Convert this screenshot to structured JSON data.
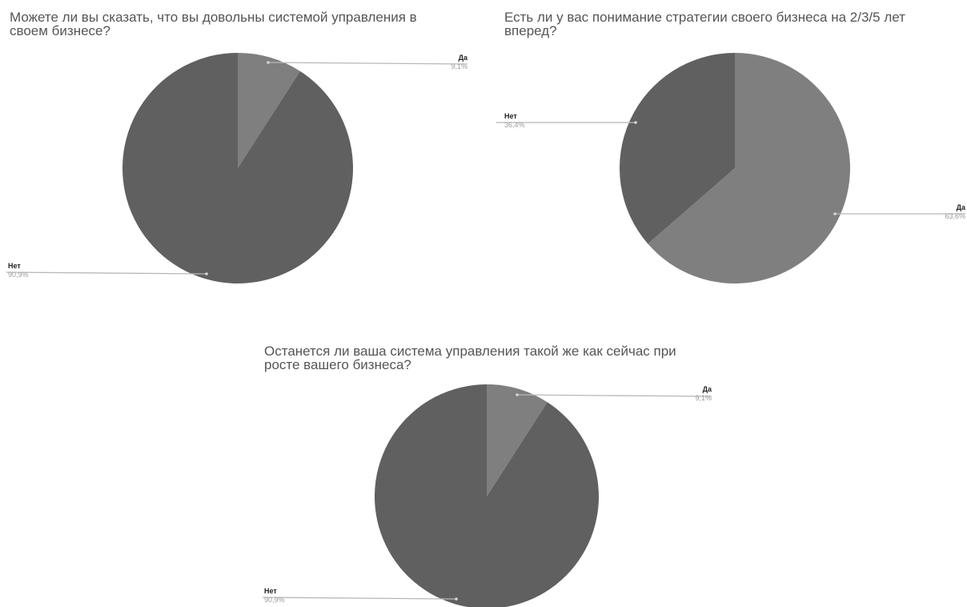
{
  "colors": {
    "yes": "#7f7f7f",
    "no": "#606060",
    "leader": "#b8b8b8",
    "background": "#ffffff"
  },
  "chart_data": [
    {
      "type": "pie",
      "title": "Можете ли вы сказать, что вы довольны системой управления в своем бизнесе?",
      "slices": [
        {
          "label": "Да",
          "value": 9.1,
          "display": "9,1%",
          "color": "#7f7f7f"
        },
        {
          "label": "Нет",
          "value": 90.9,
          "display": "90,9%",
          "color": "#606060"
        }
      ]
    },
    {
      "type": "pie",
      "title": "Есть ли у вас понимание стратегии своего бизнеса на 2/3/5 лет вперед?",
      "slices": [
        {
          "label": "Да",
          "value": 63.6,
          "display": "63,6%",
          "color": "#7f7f7f"
        },
        {
          "label": "Нет",
          "value": 36.4,
          "display": "36,4%",
          "color": "#606060"
        }
      ]
    },
    {
      "type": "pie",
      "title": "Останется ли ваша система управления такой же как сейчас при росте вашего бизнеса?",
      "slices": [
        {
          "label": "Да",
          "value": 9.1,
          "display": "9,1%",
          "color": "#7f7f7f"
        },
        {
          "label": "Нет",
          "value": 90.9,
          "display": "90,9%",
          "color": "#606060"
        }
      ]
    }
  ]
}
